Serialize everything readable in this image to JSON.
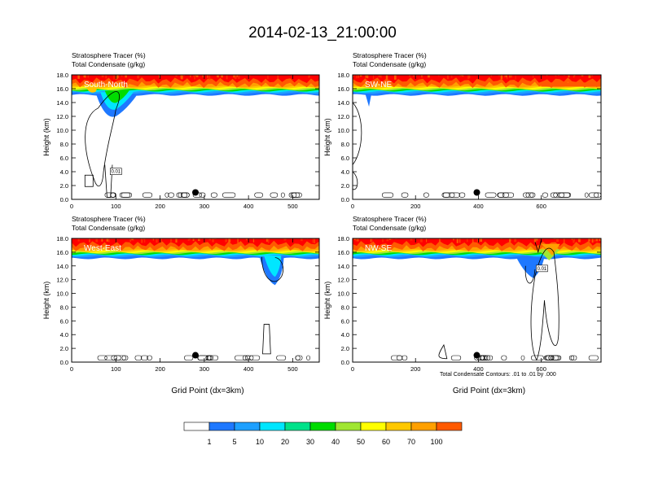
{
  "title": "2014-02-13_21:00:00",
  "footnote": "Total Condensate Contours: .01 to .01 by .000",
  "colors": {
    "levels": [
      "#ffffff",
      "#1e78ff",
      "#1ea0ff",
      "#00e6ff",
      "#00e28a",
      "#00dc00",
      "#a0e632",
      "#ffff00",
      "#ffc800",
      "#ffa000",
      "#ff5a00",
      "#ff0000"
    ]
  },
  "colorbar": {
    "labels": [
      "1",
      "5",
      "10",
      "20",
      "30",
      "40",
      "50",
      "60",
      "70",
      "100"
    ]
  },
  "chart_data": [
    {
      "type": "heatmap",
      "title": "",
      "subtitle_lines": [
        "Stratosphere Tracer   (%)",
        "Total Condensate   (g/kg)"
      ],
      "panel_label": "South-North",
      "ylabel": "Height (km)",
      "xlabel": "",
      "xlim": [
        0,
        560
      ],
      "ylim": [
        0,
        18
      ],
      "xticks": [
        0,
        100,
        200,
        300,
        400,
        500
      ],
      "yticks": [
        "0.0",
        "2.0",
        "4.0",
        "6.0",
        "8.0",
        "10.0",
        "12.0",
        "14.0",
        "16.0",
        "18.0"
      ],
      "marker_x": 280,
      "contour_label": "0.01"
    },
    {
      "type": "heatmap",
      "title": "",
      "subtitle_lines": [
        "Stratosphere Tracer   (%)",
        "Total Condensate   (g/kg)"
      ],
      "panel_label": "SW-NE",
      "ylabel": "Height (km)",
      "xlabel": "",
      "xlim": [
        0,
        790
      ],
      "ylim": [
        0,
        18
      ],
      "xticks": [
        0,
        200,
        400,
        600
      ],
      "yticks": [
        "0.0",
        "2.0",
        "4.0",
        "6.0",
        "8.0",
        "10.0",
        "12.0",
        "14.0",
        "16.0",
        "18.0"
      ],
      "marker_x": 395,
      "contour_label": ""
    },
    {
      "type": "heatmap",
      "title": "",
      "subtitle_lines": [
        "Stratosphere Tracer   (%)",
        "Total Condensate   (g/kg)"
      ],
      "panel_label": "West-East",
      "ylabel": "Height (km)",
      "xlabel": "Grid Point (dx=3km)",
      "xlim": [
        0,
        560
      ],
      "ylim": [
        0,
        18
      ],
      "xticks": [
        0,
        100,
        200,
        300,
        400,
        500
      ],
      "yticks": [
        "0.0",
        "2.0",
        "4.0",
        "6.0",
        "8.0",
        "10.0",
        "12.0",
        "14.0",
        "16.0",
        "18.0"
      ],
      "marker_x": 280,
      "contour_label": ""
    },
    {
      "type": "heatmap",
      "title": "",
      "subtitle_lines": [
        "Stratosphere Tracer   (%)",
        "Total Condensate   (g/kg)"
      ],
      "panel_label": "NW-SE",
      "ylabel": "Height (km)",
      "xlabel": "Grid Point (dx=3km)",
      "xlim": [
        0,
        790
      ],
      "ylim": [
        0,
        18
      ],
      "xticks": [
        0,
        200,
        400,
        600
      ],
      "yticks": [
        "0.0",
        "2.0",
        "4.0",
        "6.0",
        "8.0",
        "10.0",
        "12.0",
        "14.0",
        "16.0",
        "18.0"
      ],
      "marker_x": 395,
      "contour_label": "0.01"
    }
  ]
}
